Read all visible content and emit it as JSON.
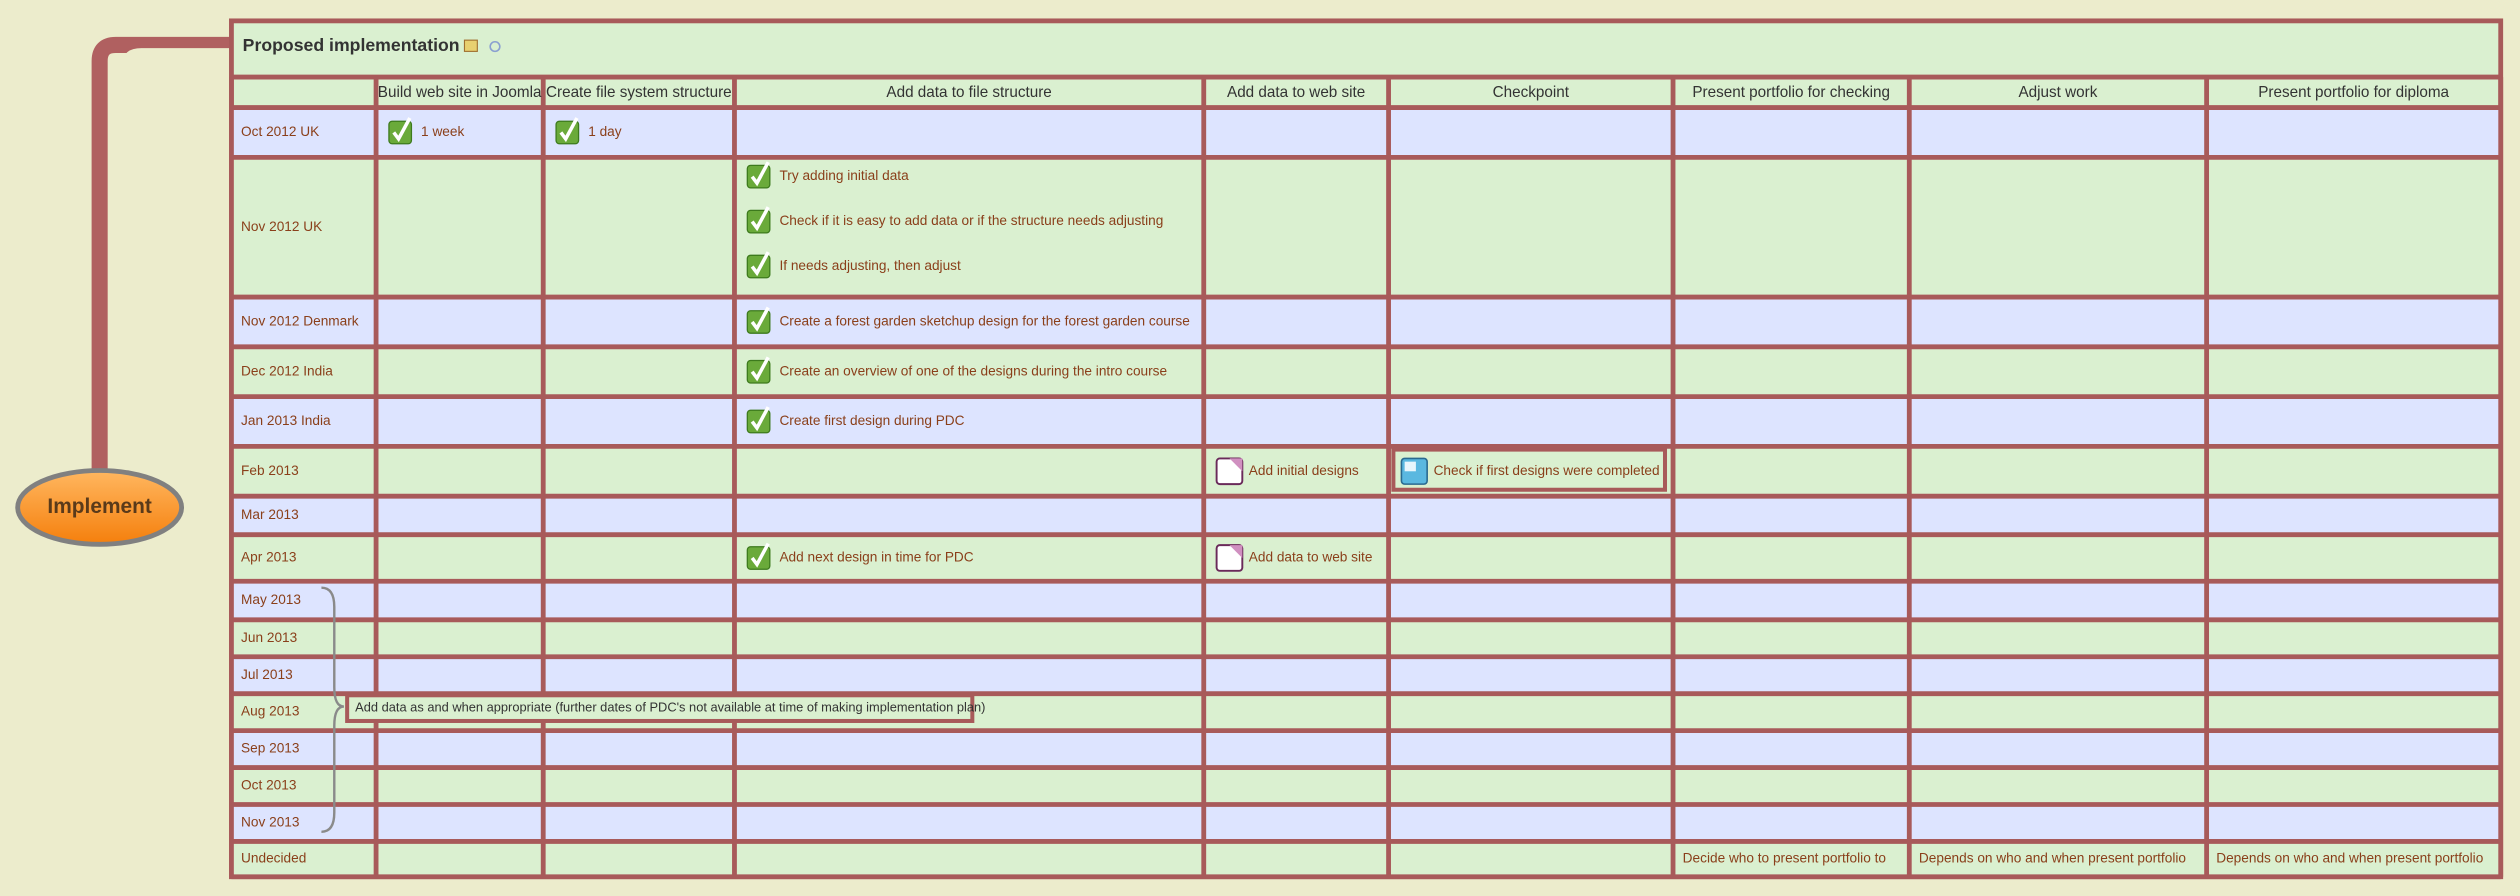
{
  "central": {
    "label": "Implement"
  },
  "table": {
    "title": "Proposed implementation",
    "columns": [
      "Build web site in Joomla",
      "Create file system structure",
      "Add data to file structure",
      "Add data to web site",
      "Checkpoint",
      "Present portfolio for checking",
      "Adjust work",
      "Present portfolio for diploma"
    ],
    "rows": [
      {
        "label": "Oct 2012 UK",
        "cells": [
          [
            {
              "text": "1 week",
              "icon": "check"
            }
          ],
          [
            {
              "text": "1 day",
              "icon": "check"
            }
          ],
          [],
          [],
          [],
          [],
          [],
          []
        ]
      },
      {
        "label": "Nov 2012 UK",
        "cells": [
          [],
          [],
          [
            {
              "text": "Try adding initial data",
              "icon": "check"
            },
            {
              "text": "Check if it is easy to add data or if the structure needs adjusting",
              "icon": "check"
            },
            {
              "text": "If needs adjusting, then adjust",
              "icon": "check"
            }
          ],
          [],
          [],
          [],
          [],
          []
        ]
      },
      {
        "label": "Nov 2012 Denmark",
        "cells": [
          [],
          [],
          [
            {
              "text": "Create a forest garden sketchup design for the forest garden course",
              "icon": "check"
            }
          ],
          [],
          [],
          [],
          [],
          []
        ]
      },
      {
        "label": "Dec 2012 India",
        "cells": [
          [],
          [],
          [
            {
              "text": "Create an overview of one of the designs during the intro course",
              "icon": "check"
            }
          ],
          [],
          [],
          [],
          [],
          []
        ]
      },
      {
        "label": "Jan 2013 India",
        "cells": [
          [],
          [],
          [
            {
              "text": "Create first design during PDC",
              "icon": "check"
            }
          ],
          [],
          [],
          [],
          [],
          []
        ]
      },
      {
        "label": "Feb 2013",
        "cells": [
          [],
          [],
          [],
          [
            {
              "text": "Add initial designs",
              "icon": "task"
            }
          ],
          [
            {
              "text": "Check if first designs were completed",
              "icon": "checkpoint"
            }
          ],
          [],
          [],
          []
        ]
      },
      {
        "label": "Mar 2013",
        "cells": [
          [],
          [],
          [],
          [],
          [],
          [],
          [],
          []
        ]
      },
      {
        "label": "Apr 2013",
        "cells": [
          [],
          [],
          [
            {
              "text": "Add next design in time for PDC",
              "icon": "check"
            }
          ],
          [
            {
              "text": "Add data to web site",
              "icon": "task"
            }
          ],
          [],
          [],
          [],
          []
        ]
      },
      {
        "label": "May 2013",
        "cells": [
          [],
          [],
          [],
          [],
          [],
          [],
          [],
          []
        ]
      },
      {
        "label": "Jun 2013",
        "cells": [
          [],
          [],
          [],
          [],
          [],
          [],
          [],
          []
        ]
      },
      {
        "label": "Jul 2013",
        "cells": [
          [],
          [],
          [],
          [],
          [],
          [],
          [],
          []
        ]
      },
      {
        "label": "Aug 2013",
        "cells": [
          [],
          [],
          [],
          [],
          [],
          [],
          [],
          []
        ]
      },
      {
        "label": "Sep 2013",
        "cells": [
          [],
          [],
          [],
          [],
          [],
          [],
          [],
          []
        ]
      },
      {
        "label": "Oct 2013",
        "cells": [
          [],
          [],
          [],
          [],
          [],
          [],
          [],
          []
        ]
      },
      {
        "label": "Nov 2013",
        "cells": [
          [],
          [],
          [],
          [],
          [],
          [],
          [],
          []
        ]
      },
      {
        "label": "Undecided",
        "cells": [
          [],
          [],
          [],
          [],
          [],
          [
            {
              "text": "Decide who to present portfolio to",
              "icon": "none"
            }
          ],
          [
            {
              "text": "Depends on who and when present portfolio",
              "icon": "none"
            }
          ],
          [
            {
              "text": "Depends on who and when present portfolio",
              "icon": "none"
            }
          ]
        ]
      }
    ],
    "note": "Add data as and when appropriate (further dates of PDC's not available at time of making implementation plan)"
  }
}
